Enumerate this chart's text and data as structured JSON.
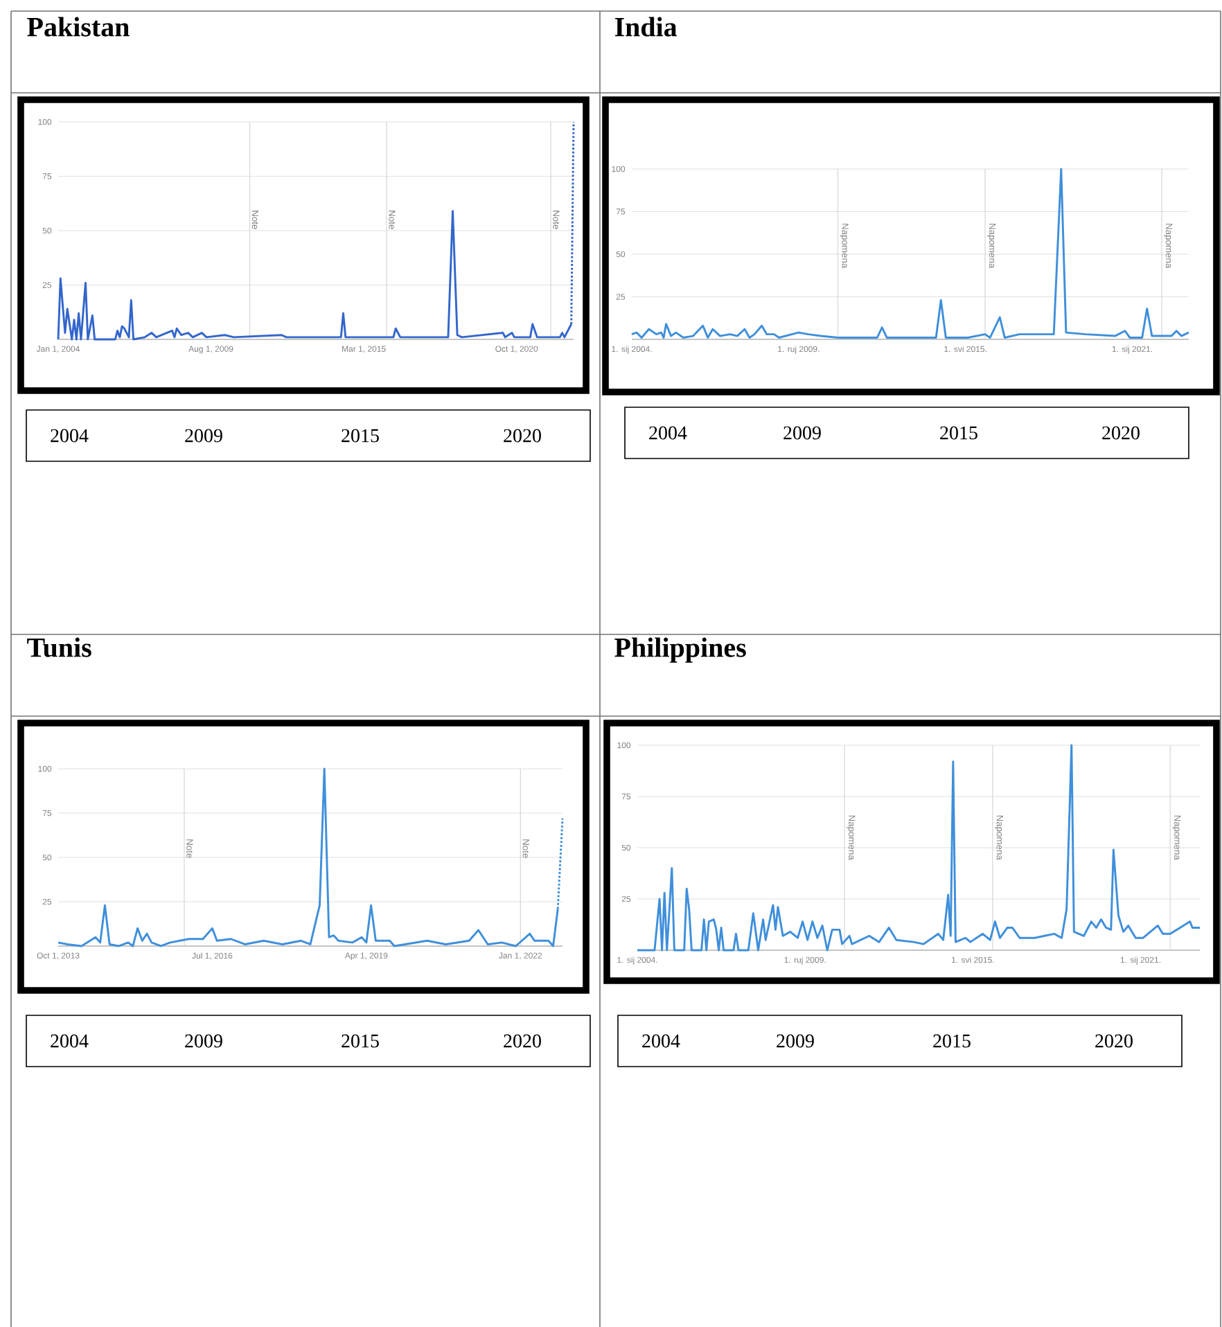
{
  "chart_data": [
    {
      "type": "line",
      "title": "Pakistan",
      "xlim": [
        "2004-01",
        "2022-11"
      ],
      "ylim": [
        0,
        100
      ],
      "grid": "y",
      "xticks": [
        {
          "value": "2004-01",
          "label": "Jan 1, 2004"
        },
        {
          "value": "2009-08",
          "label": "Aug 1, 2009"
        },
        {
          "value": "2015-03",
          "label": "Mar 1, 2015"
        },
        {
          "value": "2020-10",
          "label": "Oct 1, 2020"
        }
      ],
      "yticks": [
        25,
        50,
        75,
        100
      ],
      "ref_lines": [
        {
          "axis": "x",
          "value": "2011-01",
          "label": "Note"
        },
        {
          "axis": "x",
          "value": "2016-01",
          "label": "Note"
        },
        {
          "axis": "x",
          "value": "2022-01",
          "label": "Note"
        }
      ],
      "annotations": [
        "2004",
        "2009",
        "2015",
        "2020"
      ],
      "series": [
        {
          "color": "#3366cc",
          "x": [
            "2004-01",
            "2004-02",
            "2004-04",
            "2004-05",
            "2004-07",
            "2004-08",
            "2004-09",
            "2004-10",
            "2004-11",
            "2005-01",
            "2005-02",
            "2005-04",
            "2005-05",
            "2006-02",
            "2006-03",
            "2006-04",
            "2006-05",
            "2006-06",
            "2006-08",
            "2006-09",
            "2006-10",
            "2007-03",
            "2007-06",
            "2007-08",
            "2008-03",
            "2008-04",
            "2008-05",
            "2008-07",
            "2008-10",
            "2008-12",
            "2009-04",
            "2009-06",
            "2010-02",
            "2010-06",
            "2012-03",
            "2012-05",
            "2014-05",
            "2014-06",
            "2014-07",
            "2016-04",
            "2016-05",
            "2016-07",
            "2018-04",
            "2018-06",
            "2018-08",
            "2018-10",
            "2020-04",
            "2020-05",
            "2020-08",
            "2020-09",
            "2021-04",
            "2021-05",
            "2021-07",
            "2022-05",
            "2022-06",
            "2022-07",
            "2022-10"
          ],
          "values": [
            0,
            28,
            3,
            14,
            0,
            9,
            0,
            12,
            0,
            26,
            0,
            11,
            0,
            0,
            4,
            1,
            6,
            5,
            1,
            18,
            0,
            1,
            3,
            1,
            4,
            1,
            5,
            2,
            3,
            1,
            3,
            1,
            2,
            1,
            2,
            1,
            1,
            12,
            1,
            1,
            5,
            1,
            1,
            59,
            2,
            1,
            3,
            1,
            3,
            1,
            1,
            7,
            1,
            1,
            3,
            1,
            7
          ]
        },
        {
          "color": "#3366cc",
          "line_style": "dotted",
          "x": [
            "2022-10",
            "2022-11"
          ],
          "values": [
            7,
            100
          ]
        }
      ]
    },
    {
      "type": "line",
      "title": "India",
      "xlim": [
        "2004-01",
        "2022-12"
      ],
      "ylim": [
        0,
        100
      ],
      "grid": "y",
      "xticks": [
        {
          "value": "2004-01",
          "label": "1. sij 2004."
        },
        {
          "value": "2009-09",
          "label": "1. ruj 2009."
        },
        {
          "value": "2015-05",
          "label": "1. svi 2015."
        },
        {
          "value": "2021-01",
          "label": "1. sij 2021."
        }
      ],
      "yticks": [
        25,
        50,
        75,
        100
      ],
      "ref_lines": [
        {
          "axis": "x",
          "value": "2011-01",
          "label": "Napomena"
        },
        {
          "axis": "x",
          "value": "2016-01",
          "label": "Napomena"
        },
        {
          "axis": "x",
          "value": "2022-01",
          "label": "Napomena"
        }
      ],
      "annotations": [
        "2004",
        "2009",
        "2015",
        "2020"
      ],
      "series": [
        {
          "color": "#3f8fdb",
          "x": [
            "2004-01",
            "2004-03",
            "2004-05",
            "2004-08",
            "2004-11",
            "2005-01",
            "2005-02",
            "2005-03",
            "2005-05",
            "2005-07",
            "2005-10",
            "2006-02",
            "2006-06",
            "2006-08",
            "2006-10",
            "2007-01",
            "2007-05",
            "2007-08",
            "2007-11",
            "2008-01",
            "2008-03",
            "2008-06",
            "2008-08",
            "2008-11",
            "2009-01",
            "2009-09",
            "2010-01",
            "2010-06",
            "2011-01",
            "2012-05",
            "2012-07",
            "2012-09",
            "2014-05",
            "2014-07",
            "2014-09",
            "2015-06",
            "2016-01",
            "2016-03",
            "2016-07",
            "2016-09",
            "2017-03",
            "2018-05",
            "2018-08",
            "2018-10",
            "2019-06",
            "2020-06",
            "2020-10",
            "2020-12",
            "2021-05",
            "2021-07",
            "2021-09",
            "2022-05",
            "2022-07",
            "2022-09",
            "2022-12"
          ],
          "values": [
            3,
            4,
            1,
            6,
            3,
            4,
            1,
            9,
            2,
            4,
            1,
            2,
            8,
            1,
            6,
            2,
            3,
            2,
            6,
            1,
            3,
            8,
            3,
            3,
            1,
            4,
            3,
            2,
            1,
            1,
            7,
            1,
            1,
            23,
            1,
            1,
            3,
            1,
            13,
            1,
            3,
            3,
            100,
            4,
            3,
            2,
            5,
            1,
            1,
            18,
            2,
            2,
            5,
            2,
            4
          ]
        }
      ]
    },
    {
      "type": "line",
      "title": "Tunis",
      "xlim": [
        "2013-10",
        "2022-10"
      ],
      "ylim": [
        0,
        100
      ],
      "grid": "y",
      "xticks": [
        {
          "value": "2013-10",
          "label": "Oct 1, 2013"
        },
        {
          "value": "2016-07",
          "label": "Jul 1, 2016"
        },
        {
          "value": "2019-04",
          "label": "Apr 1, 2019"
        },
        {
          "value": "2022-01",
          "label": "Jan 1, 2022"
        }
      ],
      "yticks": [
        25,
        50,
        75,
        100
      ],
      "ref_lines": [
        {
          "axis": "x",
          "value": "2016-01",
          "label": "Note"
        },
        {
          "axis": "x",
          "value": "2022-01",
          "label": "Note"
        }
      ],
      "annotations": [
        "2004",
        "2009",
        "2015",
        "2020"
      ],
      "series": [
        {
          "color": "#3f8fdb",
          "x": [
            "2013-10",
            "2013-12",
            "2014-03",
            "2014-06",
            "2014-07",
            "2014-08",
            "2014-09",
            "2014-11",
            "2015-01",
            "2015-02",
            "2015-03",
            "2015-04",
            "2015-05",
            "2015-06",
            "2015-08",
            "2015-10",
            "2016-02",
            "2016-05",
            "2016-07",
            "2016-08",
            "2016-11",
            "2017-02",
            "2017-06",
            "2017-10",
            "2018-02",
            "2018-04",
            "2018-06",
            "2018-07",
            "2018-08",
            "2018-09",
            "2018-10",
            "2019-01",
            "2019-03",
            "2019-04",
            "2019-05",
            "2019-06",
            "2019-09",
            "2019-10",
            "2020-05",
            "2020-09",
            "2021-02",
            "2021-04",
            "2021-06",
            "2021-09",
            "2021-12",
            "2022-03",
            "2022-04",
            "2022-07",
            "2022-08",
            "2022-09"
          ],
          "values": [
            2,
            1,
            0,
            5,
            2,
            23,
            1,
            0,
            2,
            0,
            10,
            3,
            7,
            2,
            0,
            2,
            4,
            4,
            10,
            3,
            4,
            1,
            3,
            1,
            3,
            1,
            23,
            100,
            5,
            6,
            3,
            2,
            5,
            2,
            23,
            3,
            3,
            0,
            3,
            1,
            3,
            9,
            1,
            2,
            0,
            7,
            3,
            3,
            0,
            21
          ]
        },
        {
          "color": "#3f8fdb",
          "line_style": "dotted",
          "x": [
            "2022-09",
            "2022-10"
          ],
          "values": [
            21,
            72
          ]
        }
      ]
    },
    {
      "type": "line",
      "title": "Philippines",
      "xlim": [
        "2004-01",
        "2023-01"
      ],
      "ylim": [
        0,
        100
      ],
      "grid": "y",
      "xticks": [
        {
          "value": "2004-01",
          "label": "1. sij 2004."
        },
        {
          "value": "2009-09",
          "label": "1. ruj 2009."
        },
        {
          "value": "2015-05",
          "label": "1. svi 2015."
        },
        {
          "value": "2021-01",
          "label": "1. sij 2021."
        }
      ],
      "yticks": [
        25,
        50,
        75,
        100
      ],
      "ref_lines": [
        {
          "axis": "x",
          "value": "2011-01",
          "label": "Napomena"
        },
        {
          "axis": "x",
          "value": "2016-01",
          "label": "Napomena"
        },
        {
          "axis": "x",
          "value": "2022-01",
          "label": "Napomena"
        }
      ],
      "annotations": [
        "2004",
        "2009",
        "2015",
        "2020"
      ],
      "series": [
        {
          "color": "#3f8fdb",
          "x": [
            "2004-01",
            "2004-08",
            "2004-10",
            "2004-11",
            "2004-12",
            "2005-01",
            "2005-03",
            "2005-04",
            "2005-08",
            "2005-09",
            "2005-10",
            "2005-11",
            "2006-03",
            "2006-04",
            "2006-05",
            "2006-06",
            "2006-08",
            "2006-09",
            "2006-10",
            "2006-11",
            "2006-12",
            "2007-04",
            "2007-05",
            "2007-06",
            "2007-10",
            "2007-12",
            "2008-02",
            "2008-04",
            "2008-05",
            "2008-08",
            "2008-09",
            "2008-10",
            "2008-12",
            "2009-03",
            "2009-06",
            "2009-08",
            "2009-10",
            "2009-12",
            "2010-02",
            "2010-04",
            "2010-06",
            "2010-08",
            "2010-11",
            "2010-12",
            "2011-03",
            "2011-04",
            "2011-11",
            "2012-03",
            "2012-07",
            "2012-10",
            "2013-05",
            "2013-09",
            "2014-03",
            "2014-05",
            "2014-07",
            "2014-08",
            "2014-09",
            "2014-10",
            "2015-02",
            "2015-04",
            "2015-09",
            "2015-12",
            "2016-02",
            "2016-04",
            "2016-07",
            "2016-09",
            "2016-12",
            "2017-06",
            "2017-10",
            "2018-02",
            "2018-05",
            "2018-07",
            "2018-09",
            "2018-10",
            "2019-02",
            "2019-05",
            "2019-07",
            "2019-09",
            "2019-11",
            "2020-01",
            "2020-02",
            "2020-04",
            "2020-06",
            "2020-08",
            "2020-11",
            "2021-02",
            "2021-08",
            "2021-10",
            "2022-01",
            "2022-05",
            "2022-09",
            "2022-10",
            "2023-01"
          ],
          "values": [
            0,
            0,
            25,
            0,
            28,
            0,
            40,
            0,
            0,
            30,
            20,
            0,
            0,
            15,
            0,
            14,
            15,
            10,
            0,
            11,
            0,
            0,
            8,
            0,
            0,
            18,
            0,
            15,
            5,
            22,
            10,
            21,
            7,
            9,
            6,
            14,
            5,
            14,
            6,
            12,
            0,
            10,
            10,
            3,
            7,
            3,
            7,
            4,
            11,
            5,
            4,
            3,
            8,
            5,
            27,
            7,
            92,
            4,
            6,
            4,
            8,
            5,
            14,
            6,
            11,
            11,
            6,
            6,
            7,
            8,
            6,
            20,
            100,
            9,
            7,
            14,
            11,
            15,
            11,
            10,
            49,
            17,
            9,
            12,
            6,
            6,
            12,
            8,
            8,
            11,
            14,
            11,
            11
          ]
        }
      ]
    }
  ]
}
